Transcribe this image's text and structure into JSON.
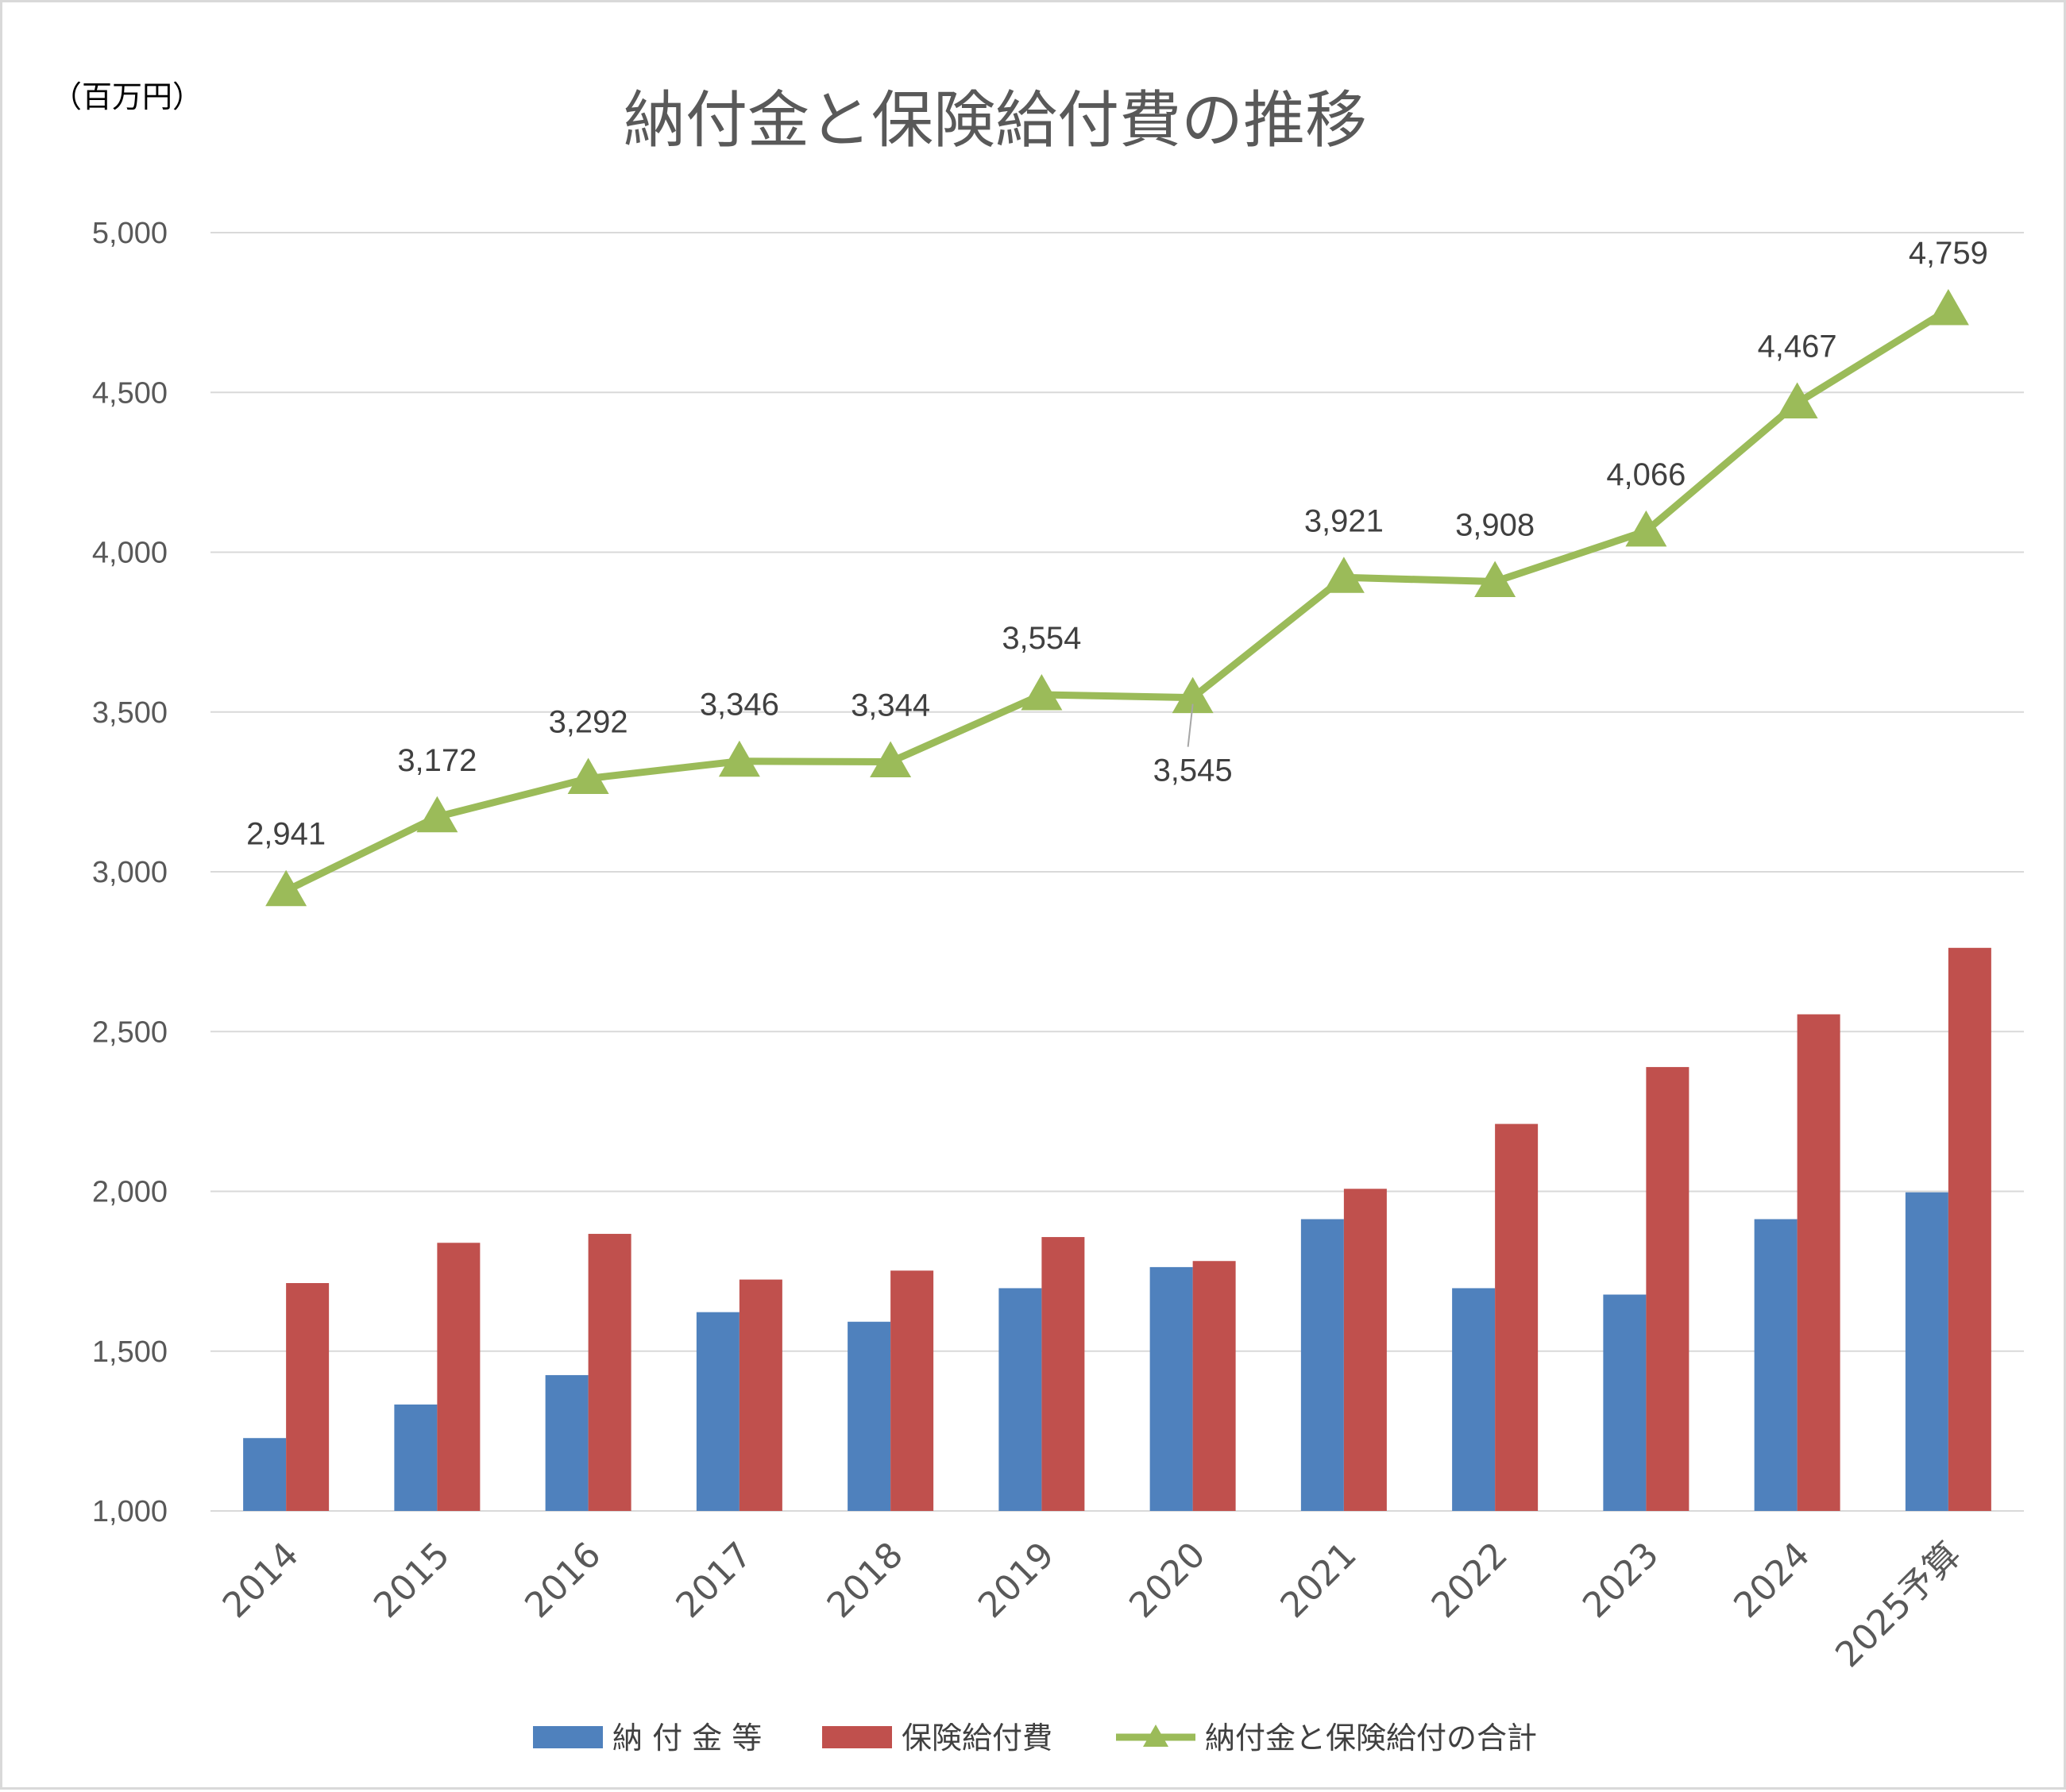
{
  "chart_data": {
    "type": "bar",
    "title": "納付金と保険給付費の推移",
    "unit_label": "（百万円）",
    "categories": [
      "2014",
      "2015",
      "2016",
      "2017",
      "2018",
      "2019",
      "2020",
      "2021",
      "2022",
      "2023",
      "2024",
      "2025予算"
    ],
    "ylim": [
      1000,
      5000
    ],
    "yticks": [
      1000,
      1500,
      2000,
      2500,
      3000,
      3500,
      4000,
      4500,
      5000
    ],
    "ytick_labels": [
      "1,000",
      "1,500",
      "2,000",
      "2,500",
      "3,000",
      "3,500",
      "4,000",
      "4,500",
      "5,000"
    ],
    "grid": true,
    "legend_position": "bottom",
    "series": [
      {
        "name": "納 付 金 等",
        "type": "bar",
        "color": "#4f81bd",
        "values": [
          1228,
          1333,
          1425,
          1622,
          1592,
          1697,
          1763,
          1913,
          1697,
          1677,
          1913,
          1997
        ]
      },
      {
        "name": "保険給付費",
        "type": "bar",
        "color": "#c0504d",
        "values": [
          1713,
          1839,
          1867,
          1724,
          1752,
          1857,
          1782,
          2008,
          2211,
          2389,
          2554,
          2762
        ]
      },
      {
        "name": "納付金と保険給付の合計",
        "type": "line",
        "marker": "triangle",
        "color": "#9bbb59",
        "values": [
          2941,
          3172,
          3292,
          3346,
          3344,
          3554,
          3545,
          3921,
          3908,
          4066,
          4467,
          4759
        ],
        "labels": [
          "2,941",
          "3,172",
          "3,292",
          "3,346",
          "3,344",
          "3,554",
          "3,545",
          "3,921",
          "3,908",
          "4,066",
          "4,467",
          "4,759"
        ]
      }
    ]
  }
}
